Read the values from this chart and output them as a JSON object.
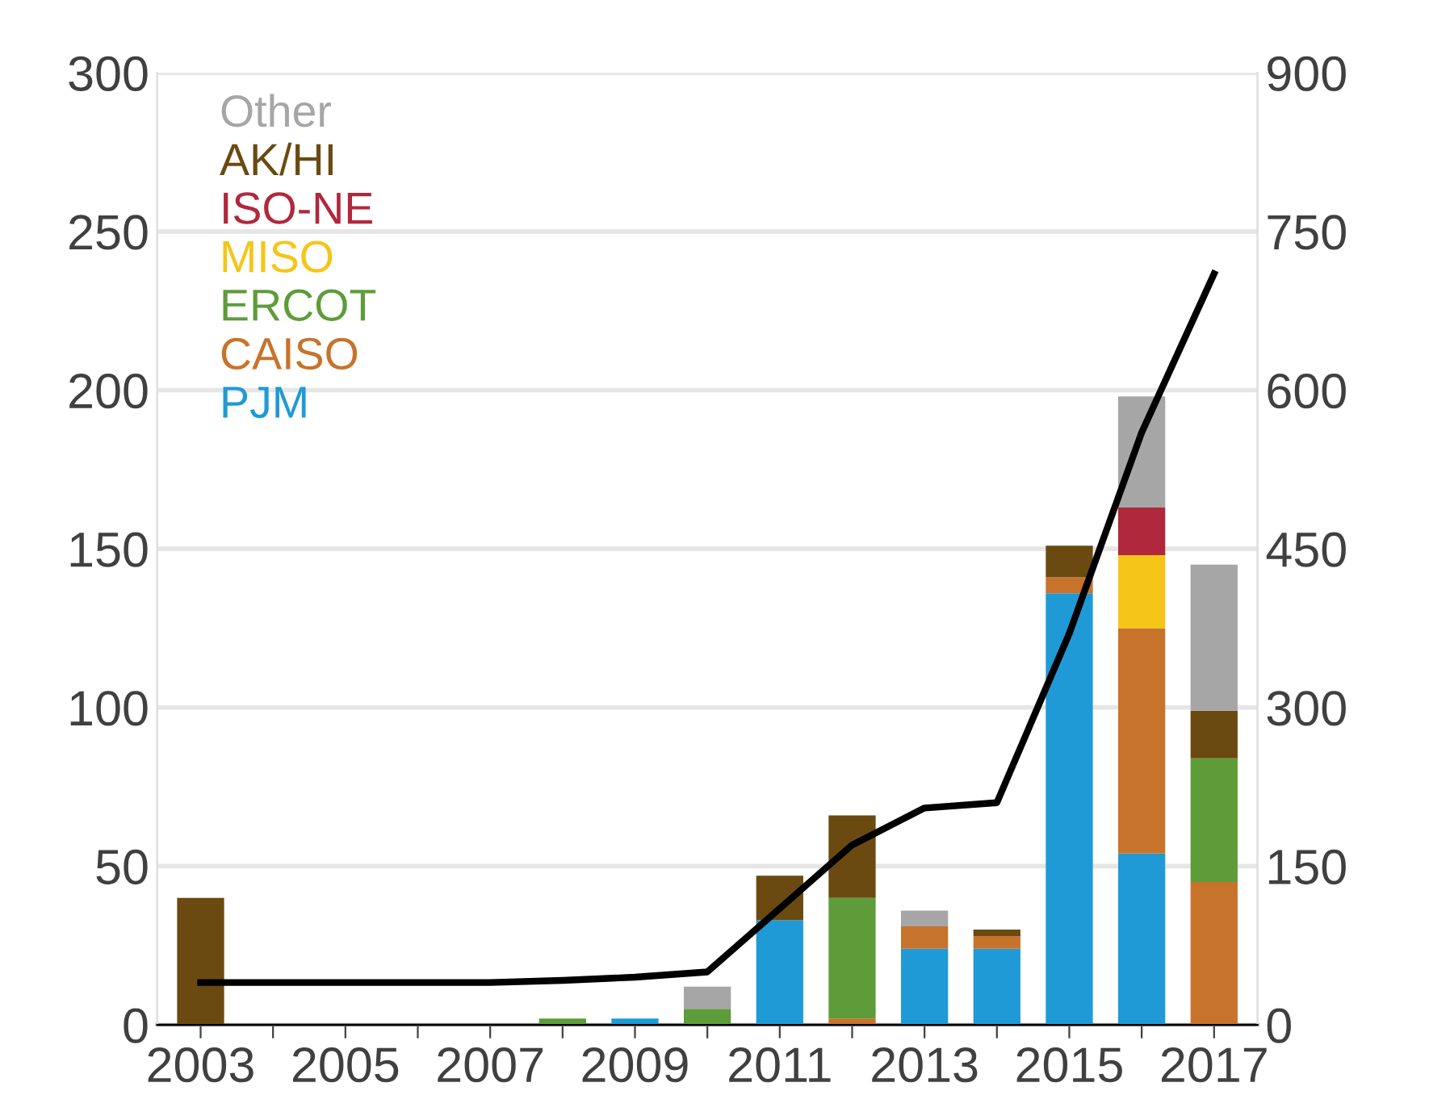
{
  "chart_data": {
    "type": "bar",
    "stacked": true,
    "categories": [
      "2003",
      null,
      "2005",
      null,
      "2007",
      null,
      "2009",
      null,
      "2011",
      null,
      "2013",
      null,
      "2015",
      null,
      "2017"
    ],
    "series": [
      {
        "name": "PJM",
        "color": "#1f9ad6",
        "values": [
          0,
          0,
          0,
          0,
          0,
          0,
          2,
          0,
          33,
          0,
          24,
          24,
          136,
          54,
          0
        ]
      },
      {
        "name": "CAISO",
        "color": "#c8732b",
        "values": [
          0,
          0,
          0,
          0,
          0,
          0,
          0,
          0,
          0,
          2,
          7,
          4,
          5,
          71,
          45
        ]
      },
      {
        "name": "ERCOT",
        "color": "#5e9c3a",
        "values": [
          0,
          0,
          0,
          0,
          0,
          2,
          0,
          5,
          0,
          38,
          0,
          0,
          0,
          0,
          39
        ]
      },
      {
        "name": "MISO",
        "color": "#f5c518",
        "values": [
          0,
          0,
          0,
          0,
          0,
          0,
          0,
          0,
          0,
          0,
          0,
          0,
          0,
          23,
          0
        ]
      },
      {
        "name": "ISO-NE",
        "color": "#b0283c",
        "values": [
          0,
          0,
          0,
          0,
          0,
          0,
          0,
          0,
          0,
          0,
          0,
          0,
          0,
          15,
          0
        ]
      },
      {
        "name": "AK/HI",
        "color": "#6b4a12",
        "values": [
          40,
          0,
          0,
          0,
          0,
          0,
          0,
          0,
          14,
          26,
          0,
          2,
          10,
          0,
          15
        ]
      },
      {
        "name": "Other",
        "color": "#a6a6a6",
        "values": [
          0,
          0,
          0,
          0,
          0,
          0,
          0,
          7,
          0,
          0,
          5,
          0,
          0,
          35,
          46
        ]
      },
      {
        "type": "line",
        "axis": "y2",
        "color": "#000000",
        "values": [
          40,
          40,
          40,
          40,
          40,
          42,
          45,
          50,
          110,
          170,
          205,
          210,
          370,
          560,
          710
        ]
      }
    ],
    "ylim": [
      0,
      300
    ],
    "yticks": [
      0,
      50,
      100,
      150,
      200,
      250,
      300
    ],
    "y2lim": [
      0,
      900
    ],
    "y2ticks": [
      0,
      150,
      300,
      450,
      600,
      750,
      900
    ],
    "grid": "y",
    "legend": "top left",
    "marker": "none",
    "line_style": "solid"
  }
}
